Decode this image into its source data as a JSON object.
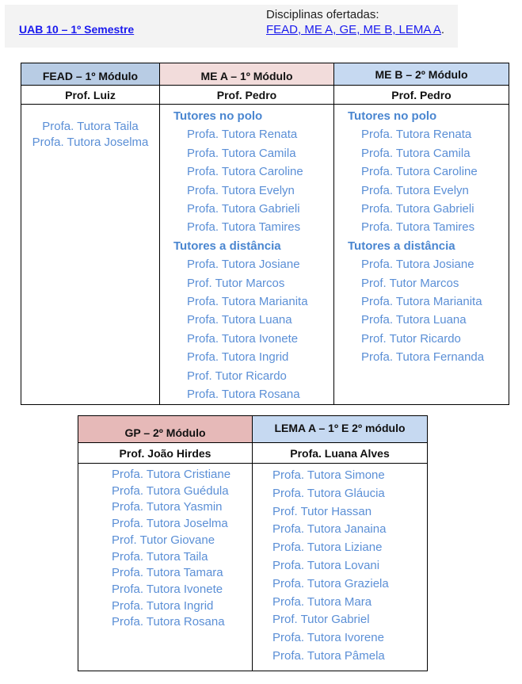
{
  "header": {
    "title": "UAB 10 – 1º Semestre",
    "offered_label": "Disciplinas ofertadas:",
    "offered_list": "FEAD, ME A, GE, ME B, LEMA A",
    "offered_suffix": "."
  },
  "colors": {
    "fead": "#b8cce4",
    "me_a": "#f2dcdb",
    "me_b": "#c6d9f1",
    "gp": "#e6b9b8",
    "lema": "#c6d9f1",
    "tutor_text": "#5b8fd6"
  },
  "table1": [
    {
      "title": "FEAD – 1º Módulo",
      "professor": "Prof. Luiz",
      "tutors": [
        "Profa. Tutora Taila",
        "Profa. Tutora Joselma"
      ]
    },
    {
      "title": "ME A – 1º Módulo",
      "professor": "Prof. Pedro",
      "sections": [
        {
          "label": "Tutores no polo",
          "tutors": [
            "Profa. Tutora Renata",
            "Profa. Tutora Camila",
            "Profa. Tutora Caroline",
            "Profa. Tutora Evelyn",
            "Profa. Tutora Gabrieli",
            "Profa. Tutora Tamires"
          ]
        },
        {
          "label": "Tutores a distância",
          "tutors": [
            "Profa. Tutora Josiane",
            "Prof. Tutor Marcos",
            "Profa. Tutora Marianita",
            "Profa. Tutora Luana",
            "Profa. Tutora Ivonete",
            "Profa. Tutora Ingrid",
            "Prof. Tutor Ricardo",
            "Profa. Tutora Rosana"
          ]
        }
      ]
    },
    {
      "title": "ME B – 2º Módulo",
      "professor": "Prof. Pedro",
      "sections": [
        {
          "label": "Tutores no polo",
          "tutors": [
            "Profa. Tutora Renata",
            "Profa. Tutora Camila",
            "Profa. Tutora Caroline",
            "Profa. Tutora Evelyn",
            "Profa. Tutora Gabrieli",
            "Profa. Tutora Tamires"
          ]
        },
        {
          "label": "Tutores a distância",
          "tutors": [
            "Profa. Tutora Josiane",
            "Prof. Tutor Marcos",
            "Profa. Tutora Marianita",
            "Profa. Tutora Luana",
            "Prof. Tutor Ricardo",
            "Profa. Tutora Fernanda"
          ]
        }
      ]
    }
  ],
  "table2": [
    {
      "title": "GP – 2º Módulo",
      "professor": "Prof. João Hirdes",
      "tutors": [
        "Profa. Tutora Cristiane",
        "Profa. Tutora Guédula",
        "Profa. Tutora Yasmin",
        "Profa. Tutora Joselma",
        "Prof. Tutor Giovane",
        "Profa. Tutora Taila",
        "Profa. Tutora Tamara",
        "Profa. Tutora Ivonete",
        "Profa. Tutora Ingrid",
        "Profa. Tutora Rosana"
      ]
    },
    {
      "title": "LEMA A – 1º E 2º módulo",
      "professor": "Profa. Luana Alves",
      "tutors": [
        "Profa. Tutora Simone",
        "Profa. Tutora Gláucia",
        "Prof. Tutor Hassan",
        "Profa. Tutora Janaina",
        "Profa. Tutora Liziane",
        "Profa. Tutora Lovani",
        "Profa. Tutora Graziela",
        "Profa. Tutora  Mara",
        "Prof. Tutor Gabriel",
        "Profa. Tutora Ivorene",
        "Profa. Tutora Pâmela"
      ]
    }
  ]
}
